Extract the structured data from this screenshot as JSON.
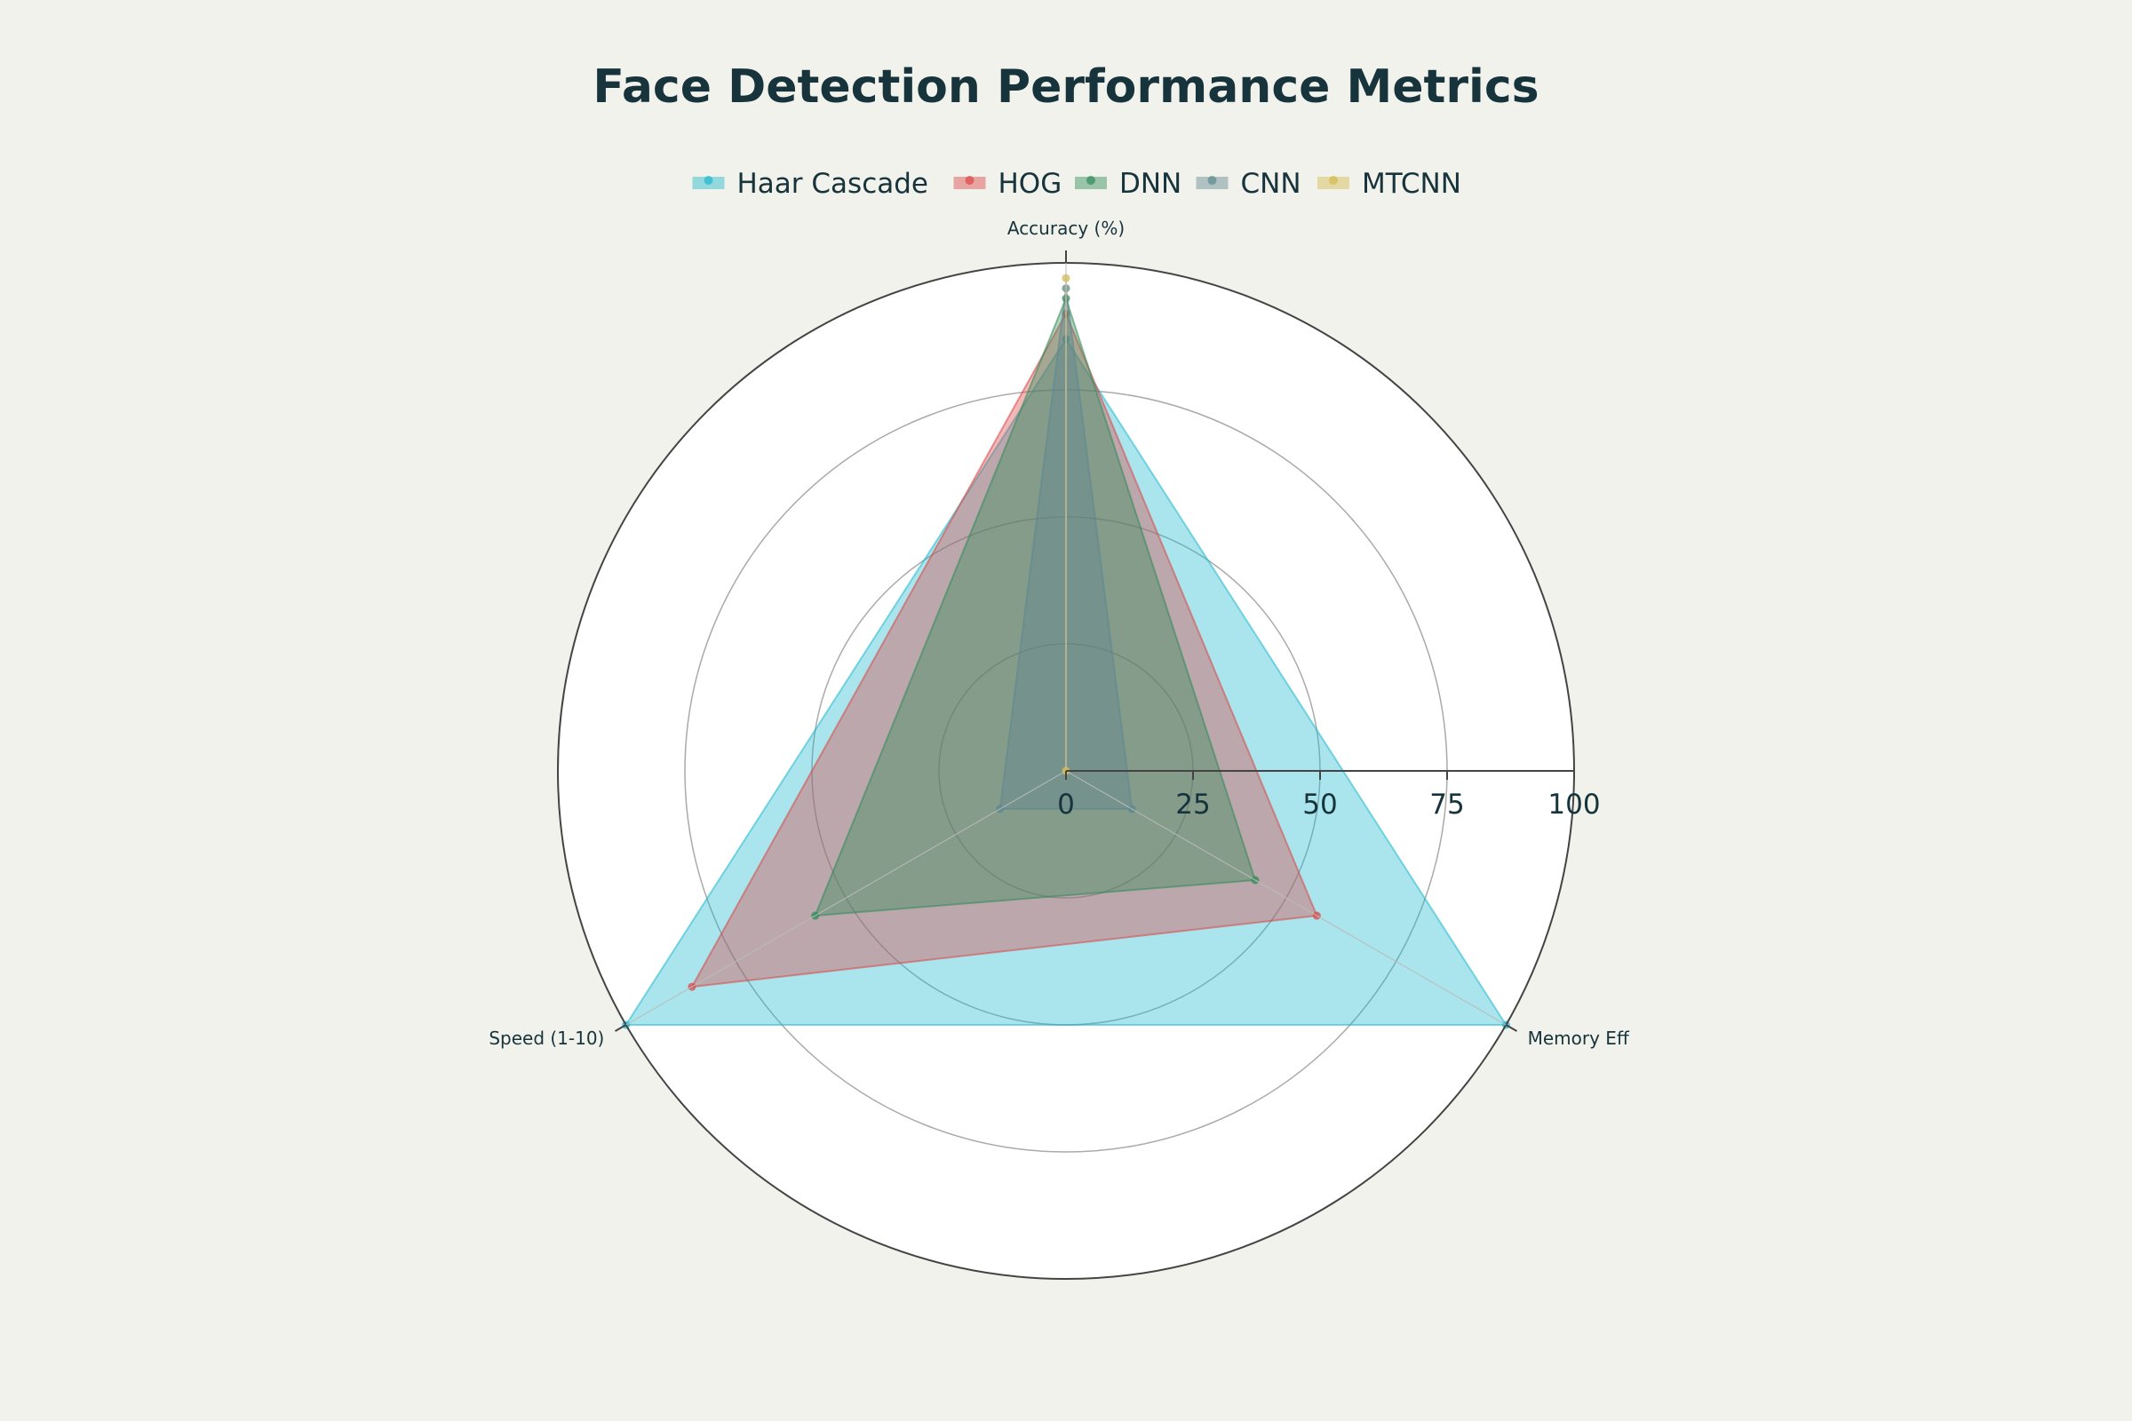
{
  "chart_data": {
    "type": "radar",
    "title": "Face Detection Performance Metrics",
    "axes": [
      "Accuracy (%)",
      "Memory Eff",
      "Speed (1-10)"
    ],
    "radial_range": [
      0,
      100
    ],
    "radial_ticks": [
      0,
      25,
      50,
      75,
      100
    ],
    "grid": true,
    "legend_position": "top-center",
    "series": [
      {
        "name": "Haar Cascade",
        "values": [
          85,
          100,
          100
        ],
        "color": "#1fb8cd"
      },
      {
        "name": "HOG",
        "values": [
          90,
          57,
          85
        ],
        "color": "#db4545"
      },
      {
        "name": "DNN",
        "values": [
          93,
          43,
          57
        ],
        "color": "#2e8b57"
      },
      {
        "name": "CNN",
        "values": [
          95,
          15,
          15
        ],
        "color": "#5d878f"
      },
      {
        "name": "MTCNN",
        "values": [
          97,
          0,
          0
        ],
        "color": "#d2ba4c"
      }
    ]
  }
}
